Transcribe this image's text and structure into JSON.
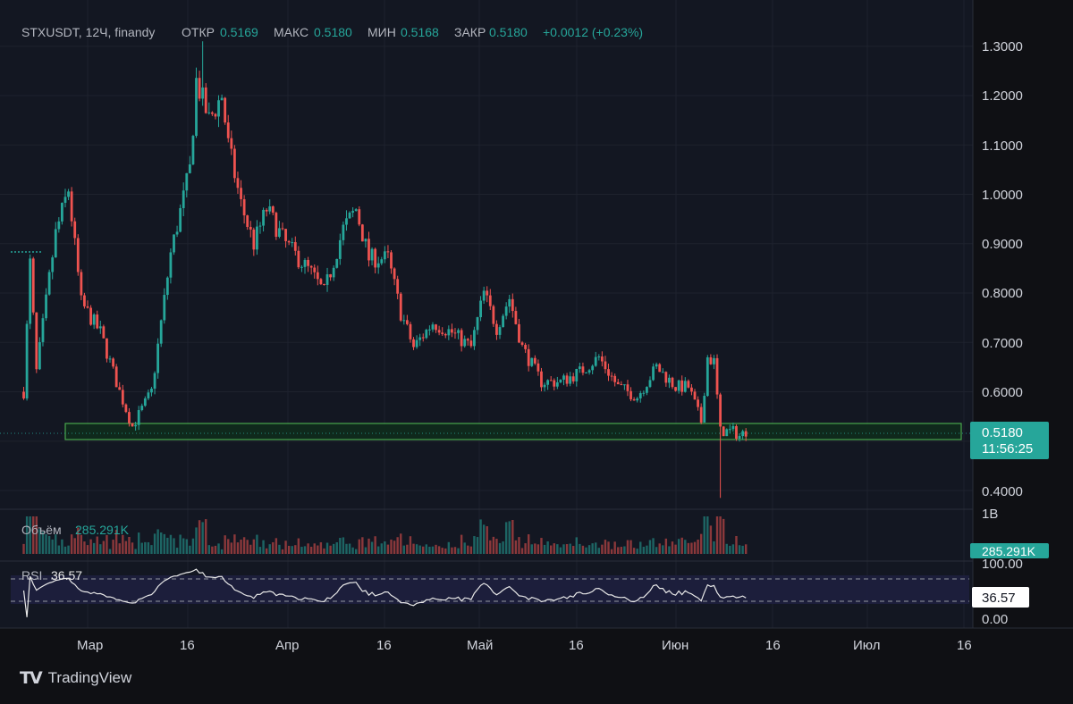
{
  "header": {
    "symbol": "STXUSDT, 12Ч, finandy",
    "open_label": "ОТКР",
    "open_value": "0.5169",
    "high_label": "МАКС",
    "high_value": "0.5180",
    "low_label": "МИН",
    "low_value": "0.5168",
    "close_label": "ЗАКР",
    "close_value": "0.5180",
    "change": "+0.0012 (+0.23%)"
  },
  "price_axis": {
    "ticks": [
      "1.3000",
      "1.2000",
      "1.1000",
      "1.0000",
      "0.9000",
      "0.8000",
      "0.7000",
      "0.6000",
      "0.4000"
    ],
    "last_price": "0.5180",
    "countdown": "11:56:25"
  },
  "volume": {
    "label": "Объём",
    "value": "285.291K",
    "axis_label": "1B",
    "badge": "285.291K"
  },
  "rsi": {
    "label": "RSI",
    "value": "36.57",
    "ticks": [
      "100.00",
      "0.00"
    ],
    "badge": "36.57",
    "upper": 70,
    "lower": 30
  },
  "time_axis": {
    "labels": [
      "Мар",
      "16",
      "Апр",
      "16",
      "Май",
      "16",
      "Июн",
      "16",
      "Июл",
      "16"
    ]
  },
  "branding": {
    "name": "TradingView"
  },
  "colors": {
    "background": "#0f1014",
    "panel": "#131722",
    "up": "#26a69a",
    "down": "#ef5350",
    "zone_border": "#4caf50",
    "zone_fill": "#0f2b1c",
    "rsi_band": "#1c1f3d",
    "text": "#b2b5be",
    "grid": "#1e222d"
  },
  "chart_data": {
    "type": "candlestick",
    "title": "STXUSDT, 12Ч, finandy",
    "interval": "12h",
    "ylim": [
      0.36,
      1.33
    ],
    "support_zone": [
      0.5,
      0.535
    ],
    "last_price": 0.518,
    "x_start": "2024-02-20",
    "x_end": "2024-07-16",
    "anchors": [
      [
        "2024-02-20",
        0.6
      ],
      [
        "2024-02-21",
        0.86
      ],
      [
        "2024-02-22",
        0.64
      ],
      [
        "2024-02-24",
        0.83
      ],
      [
        "2024-02-25",
        0.92
      ],
      [
        "2024-02-27",
        1.01
      ],
      [
        "2024-02-29",
        0.78
      ],
      [
        "2024-03-03",
        0.72
      ],
      [
        "2024-03-06",
        0.6
      ],
      [
        "2024-03-08",
        0.53
      ],
      [
        "2024-03-11",
        0.6
      ],
      [
        "2024-03-14",
        0.88
      ],
      [
        "2024-03-17",
        1.05
      ],
      [
        "2024-03-18",
        1.23
      ],
      [
        "2024-03-20",
        1.15
      ],
      [
        "2024-03-22",
        1.2
      ],
      [
        "2024-03-23",
        1.1
      ],
      [
        "2024-03-25",
        0.98
      ],
      [
        "2024-03-27",
        0.9
      ],
      [
        "2024-03-29",
        0.97
      ],
      [
        "2024-04-01",
        0.9
      ],
      [
        "2024-04-05",
        0.84
      ],
      [
        "2024-04-07",
        0.8
      ],
      [
        "2024-04-10",
        0.93
      ],
      [
        "2024-04-12",
        0.97
      ],
      [
        "2024-04-14",
        0.87
      ],
      [
        "2024-04-17",
        0.87
      ],
      [
        "2024-04-19",
        0.76
      ],
      [
        "2024-04-21",
        0.69
      ],
      [
        "2024-04-24",
        0.74
      ],
      [
        "2024-04-27",
        0.72
      ],
      [
        "2024-04-30",
        0.69
      ],
      [
        "2024-05-02",
        0.8
      ],
      [
        "2024-05-04",
        0.73
      ],
      [
        "2024-05-06",
        0.79
      ],
      [
        "2024-05-08",
        0.69
      ],
      [
        "2024-05-11",
        0.62
      ],
      [
        "2024-05-14",
        0.62
      ],
      [
        "2024-05-17",
        0.64
      ],
      [
        "2024-05-20",
        0.67
      ],
      [
        "2024-05-23",
        0.61
      ],
      [
        "2024-05-26",
        0.59
      ],
      [
        "2024-05-29",
        0.65
      ],
      [
        "2024-06-01",
        0.61
      ],
      [
        "2024-06-03",
        0.61
      ],
      [
        "2024-06-05",
        0.54
      ],
      [
        "2024-06-06",
        0.67
      ],
      [
        "2024-06-07",
        0.66
      ],
      [
        "2024-06-08",
        0.52
      ],
      [
        "2024-06-10",
        0.52
      ],
      [
        "2024-06-11",
        0.51
      ],
      [
        "2024-06-12",
        0.52
      ]
    ],
    "rsi_last": 36.57
  }
}
